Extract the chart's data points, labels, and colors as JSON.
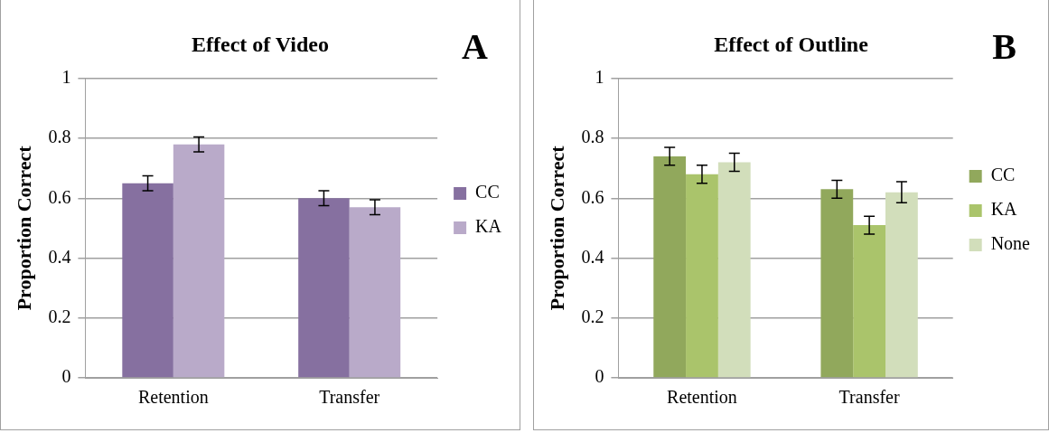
{
  "chart_data": [
    {
      "type": "bar",
      "title": "Effect of Video",
      "ylabel": "Proportion Correct",
      "annotations": [
        "A"
      ],
      "categories": [
        "Retention",
        "Transfer"
      ],
      "series": [
        {
          "name": "CC",
          "color": "#8670a0",
          "values": [
            0.65,
            0.6
          ],
          "errors": [
            0.025,
            0.025
          ]
        },
        {
          "name": "KA",
          "color": "#b9aac9",
          "values": [
            0.78,
            0.57
          ],
          "errors": [
            0.025,
            0.025
          ]
        }
      ],
      "ylim": [
        0,
        1
      ],
      "yticks": [
        0,
        0.2,
        0.4,
        0.6,
        0.8,
        1
      ],
      "grid": "y",
      "legend": "right"
    },
    {
      "type": "bar",
      "title": "Effect of Outline",
      "ylabel": "Proportion Correct",
      "annotations": [
        "B"
      ],
      "categories": [
        "Retention",
        "Transfer"
      ],
      "series": [
        {
          "name": "CC",
          "color": "#91a85c",
          "values": [
            0.74,
            0.63
          ],
          "errors": [
            0.03,
            0.03
          ]
        },
        {
          "name": "KA",
          "color": "#aac46b",
          "values": [
            0.68,
            0.51
          ],
          "errors": [
            0.03,
            0.03
          ]
        },
        {
          "name": "None",
          "color": "#d2debb",
          "values": [
            0.72,
            0.62
          ],
          "errors": [
            0.03,
            0.035
          ]
        }
      ],
      "ylim": [
        0,
        1
      ],
      "yticks": [
        0,
        0.2,
        0.4,
        0.6,
        0.8,
        1
      ],
      "grid": "y",
      "legend": "right"
    }
  ]
}
